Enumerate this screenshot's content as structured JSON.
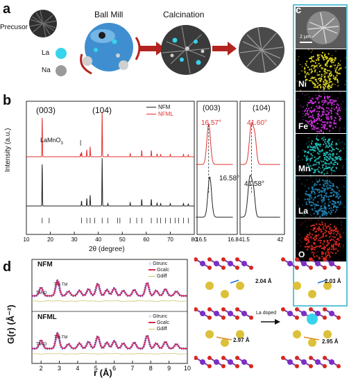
{
  "panel_labels": {
    "a": "a",
    "b": "b",
    "c": "c",
    "d": "d"
  },
  "panel_a": {
    "precursor": "Precusor",
    "la": "La",
    "na": "Na",
    "ball_mill": "Ball Mill",
    "calcination": "Calcination",
    "colors": {
      "la": "#36d3ec",
      "na": "#9a9a9a",
      "mill": "#3f8fd0",
      "arrow": "#b3231f"
    }
  },
  "panel_b": {
    "peak_003": "(003)",
    "peak_104": "(104)",
    "impurity": "LaMnO",
    "impurity_sub": "3",
    "ylabel": "Intensity (a.u.)",
    "xlabel": "2θ (degree)",
    "legend": [
      {
        "name": "NFM",
        "color": "#222222"
      },
      {
        "name": "NFML",
        "color": "#e0312f"
      }
    ],
    "x_ticks": [
      "10",
      "20",
      "30",
      "40",
      "50",
      "60",
      "70",
      "80"
    ],
    "zoom1": {
      "title": "(003)",
      "nfml_angle": "16.57°",
      "nfm_angle": "16.58°",
      "ticks": [
        "16.5",
        "16.8"
      ]
    },
    "zoom2": {
      "title": "(104)",
      "nfml_angle": "41.60°",
      "nfm_angle": "41.58°",
      "ticks": [
        "41.5",
        "42"
      ]
    }
  },
  "panel_c": {
    "scale": "2 μm",
    "maps": [
      {
        "label": "Ni",
        "color": "#d6cc1f"
      },
      {
        "label": "Fe",
        "color": "#c12fd0"
      },
      {
        "label": "Mn",
        "color": "#1fb5b1"
      },
      {
        "label": "La",
        "color": "#1f7fae"
      },
      {
        "label": "O",
        "color": "#d5281e"
      }
    ]
  },
  "panel_d": {
    "nfm_title": "NFM",
    "nfml_title": "NFML",
    "legend": [
      "Gtrunc",
      "Gcalc",
      "Gdiff"
    ],
    "tm_o": "TM-O",
    "tm_tm": "TM-TM",
    "ylabel": "G(r) (Å⁻²)",
    "xlabel": "r (Å)",
    "x_ticks": [
      "2",
      "3",
      "4",
      "5",
      "6",
      "7",
      "8",
      "9",
      "10"
    ],
    "struct_left": {
      "bond_top": "2.04 Å",
      "bond_mid": "2.97 Å"
    },
    "struct_right": {
      "bond_top": "2.03 Å",
      "bond_mid": "2.95 Å",
      "la_label": "La"
    },
    "arrow_label": "La doped"
  }
}
